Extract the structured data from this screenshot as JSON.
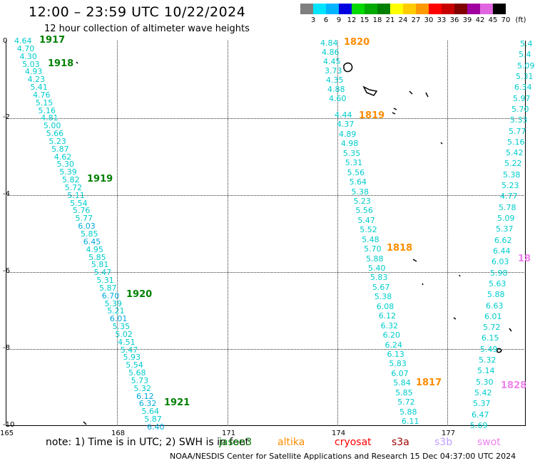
{
  "header": {
    "title": "12:00 – 23:59 UTC 10/22/2024",
    "subtitle": "12 hour collection of altimeter wave heights"
  },
  "color_scale": {
    "labels": [
      "3",
      "6",
      "9",
      "12",
      "15",
      "18",
      "21",
      "24",
      "27",
      "30",
      "33",
      "36",
      "39",
      "42",
      "45",
      "70",
      "(ft)"
    ],
    "colors": [
      "#7f7f7f",
      "#00e5ff",
      "#00b4ff",
      "#0000e0",
      "#00d800",
      "#00a800",
      "#008000",
      "#ffff00",
      "#ffcc00",
      "#ff9900",
      "#ff0000",
      "#c80000",
      "#800000",
      "#a000a0",
      "#e066e0",
      "#000000"
    ]
  },
  "axes": {
    "lat_labels": [
      "0",
      "-2",
      "-4",
      "-6",
      "-8",
      "-10"
    ],
    "lon_labels": [
      "165",
      "168",
      "171",
      "174",
      "177"
    ]
  },
  "tracks": {
    "t1917": {
      "color": "#00cccc",
      "label": "1917",
      "label_color": "#008000",
      "values": [
        "4.64",
        "4.70",
        "4.30",
        "5.03",
        "4.93",
        "4.23",
        "5.41",
        "4.76",
        "5.15",
        "5.16",
        "4.81",
        "5.00",
        "5.66",
        "5.23",
        "5.87",
        "4.62",
        "5.30",
        "5.39",
        "5.82",
        "5.72",
        "5.11",
        "5.54",
        "5.76",
        "5.77",
        "6.03",
        "5.85",
        "6.45",
        "4.95",
        "5.85",
        "5.81",
        "5.47",
        "5.31",
        "5.87",
        "6.70",
        "5.39",
        "5.21",
        "6.01",
        "5.35",
        "5.02",
        "4.51",
        "5.47",
        "5.93",
        "5.54",
        "5.68",
        "5.73",
        "5.32",
        "6.12",
        "6.32",
        "5.64",
        "5.87",
        "6.40"
      ]
    },
    "t1820": {
      "color": "#00cccc",
      "label": "1820",
      "label_color": "#ff8c00",
      "values": [
        "4.84",
        "4.86",
        "4.45",
        "3.73",
        "4.35",
        "4.88",
        "4.60"
      ]
    },
    "t1818": {
      "color": "#00cccc",
      "values": [
        "4.44",
        "4.37",
        "4.89",
        "4.98",
        "5.35",
        "5.31",
        "5.56",
        "5.64",
        "5.38",
        "5.23",
        "5.56",
        "5.47",
        "5.52",
        "5.48",
        "5.70",
        "5.88",
        "5.40",
        "5.83",
        "5.67",
        "5.38",
        "6.08",
        "6.12",
        "6.32",
        "6.20",
        "6.24",
        "6.13",
        "5.83",
        "6.07",
        "5.84",
        "5.85",
        "5.72",
        "5.88",
        "6.11"
      ]
    },
    "t1828": {
      "color": "#00cccc",
      "values": [
        "5.4",
        "5.4",
        "5.09",
        "5.31",
        "6.34",
        "5.97",
        "5.70",
        "5.33",
        "5.77",
        "5.16",
        "5.42",
        "5.22",
        "5.38",
        "5.23",
        "4.77",
        "5.78",
        "5.09",
        "5.37",
        "6.62",
        "6.44",
        "6.03",
        "5.98",
        "5.63",
        "5.88",
        "6.63",
        "6.01",
        "5.72",
        "6.15",
        "5.49",
        "5.32",
        "5.14",
        "5.30",
        "5.42",
        "5.37",
        "6.47",
        "5.69"
      ]
    }
  },
  "pass_labels": {
    "p1918": "1918",
    "p1919": "1919",
    "p1920": "1920",
    "p1921": "1921",
    "p1819": "1819",
    "p1818": "1818",
    "p1817": "1817",
    "p1828": "1828",
    "p18x": "18"
  },
  "bottom": {
    "note": "note:  1) Time is in UTC;  2) SWH is in feet",
    "jason3": "jason3",
    "altika": "altika",
    "cryosat": "cryosat",
    "s3a": "s3a",
    "s3b": "s3b",
    "swot": "swot",
    "footer": "NOAA/NESDIS Center for Satellite Applications and Research    15 Dec 04:37:00 UTC 2024"
  }
}
